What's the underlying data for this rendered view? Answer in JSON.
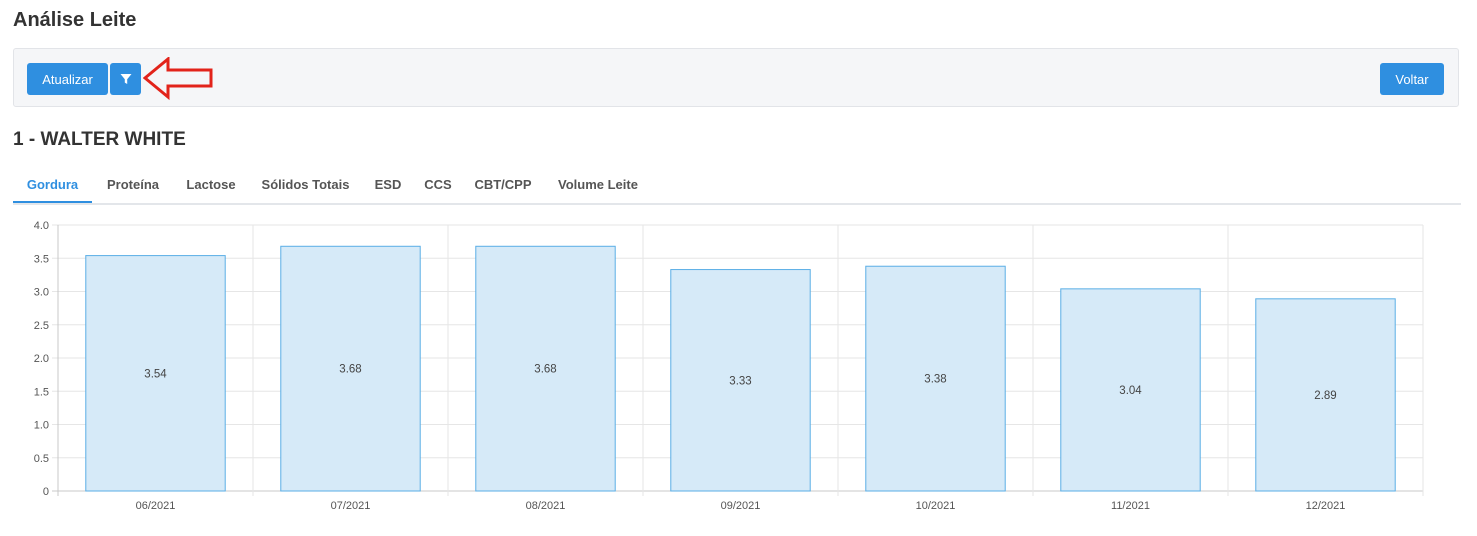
{
  "page": {
    "title": "Análise Leite"
  },
  "toolbar": {
    "refresh_label": "Atualizar",
    "back_label": "Voltar",
    "filter_icon": "filter-icon"
  },
  "annotation": {
    "arrow_color": "#e2231a"
  },
  "customer": {
    "heading": "1 - WALTER WHITE"
  },
  "tabs": [
    {
      "label": "Gordura",
      "active": true
    },
    {
      "label": "Proteína"
    },
    {
      "label": "Lactose"
    },
    {
      "label": "Sólidos Totais"
    },
    {
      "label": "ESD"
    },
    {
      "label": "CCS"
    },
    {
      "label": "CBT/CPP"
    },
    {
      "label": "Volume Leite"
    }
  ],
  "colors": {
    "accent": "#2f8fe0",
    "bar_fill": "#d6eaf8",
    "bar_stroke": "#5aaee6"
  },
  "chart_data": {
    "type": "bar",
    "categories": [
      "06/2021",
      "07/2021",
      "08/2021",
      "09/2021",
      "10/2021",
      "11/2021",
      "12/2021"
    ],
    "values": [
      3.54,
      3.68,
      3.68,
      3.33,
      3.38,
      3.04,
      2.89
    ],
    "value_labels": [
      "3.54",
      "3.68",
      "3.68",
      "3.33",
      "3.38",
      "3.04",
      "2.89"
    ],
    "y_ticks": [
      "0",
      "0.5",
      "1.0",
      "1.5",
      "2.0",
      "2.5",
      "3.0",
      "3.5",
      "4.0"
    ],
    "ylim": [
      0,
      4
    ],
    "grid": true,
    "legend": "none"
  }
}
